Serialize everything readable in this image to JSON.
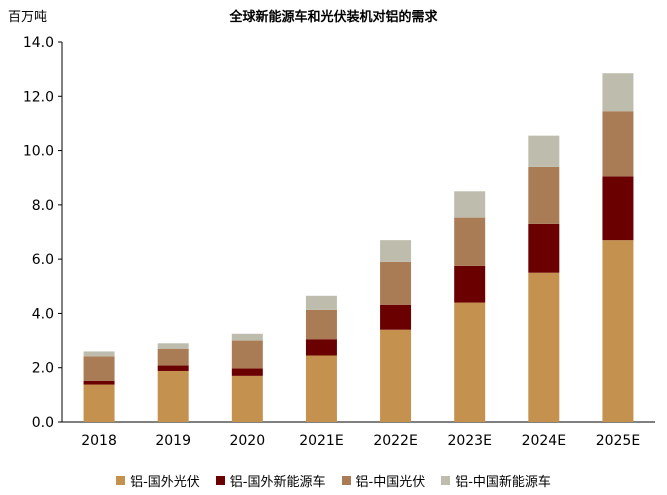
{
  "chart_data": {
    "type": "bar",
    "stacked": true,
    "title": "全球新能源车和光伏装机对铝的需求",
    "ylabel": "百万吨",
    "xlabel": "",
    "ylim": [
      0,
      14
    ],
    "yticks": [
      "0.0",
      "2.0",
      "4.0",
      "6.0",
      "8.0",
      "10.0",
      "12.0",
      "14.0"
    ],
    "grid": false,
    "legend_position": "bottom",
    "categories": [
      "2018",
      "2019",
      "2020",
      "2021E",
      "2022E",
      "2023E",
      "2024E",
      "2025E"
    ],
    "series": [
      {
        "name": "铝-国外光伏",
        "color": "#C4924E",
        "values": [
          1.38,
          1.88,
          1.7,
          2.45,
          3.4,
          4.4,
          5.5,
          6.7
        ]
      },
      {
        "name": "铝-国外新能源车",
        "color": "#6B0000",
        "values": [
          0.14,
          0.2,
          0.27,
          0.6,
          0.92,
          1.35,
          1.8,
          2.35
        ]
      },
      {
        "name": "铝-中国光伏",
        "color": "#A97C55",
        "values": [
          0.9,
          0.62,
          1.03,
          1.08,
          1.58,
          1.78,
          2.1,
          2.4
        ]
      },
      {
        "name": "铝-中国新能源车",
        "color": "#BEBDAD",
        "values": [
          0.18,
          0.2,
          0.25,
          0.52,
          0.8,
          0.97,
          1.15,
          1.4
        ]
      }
    ]
  }
}
